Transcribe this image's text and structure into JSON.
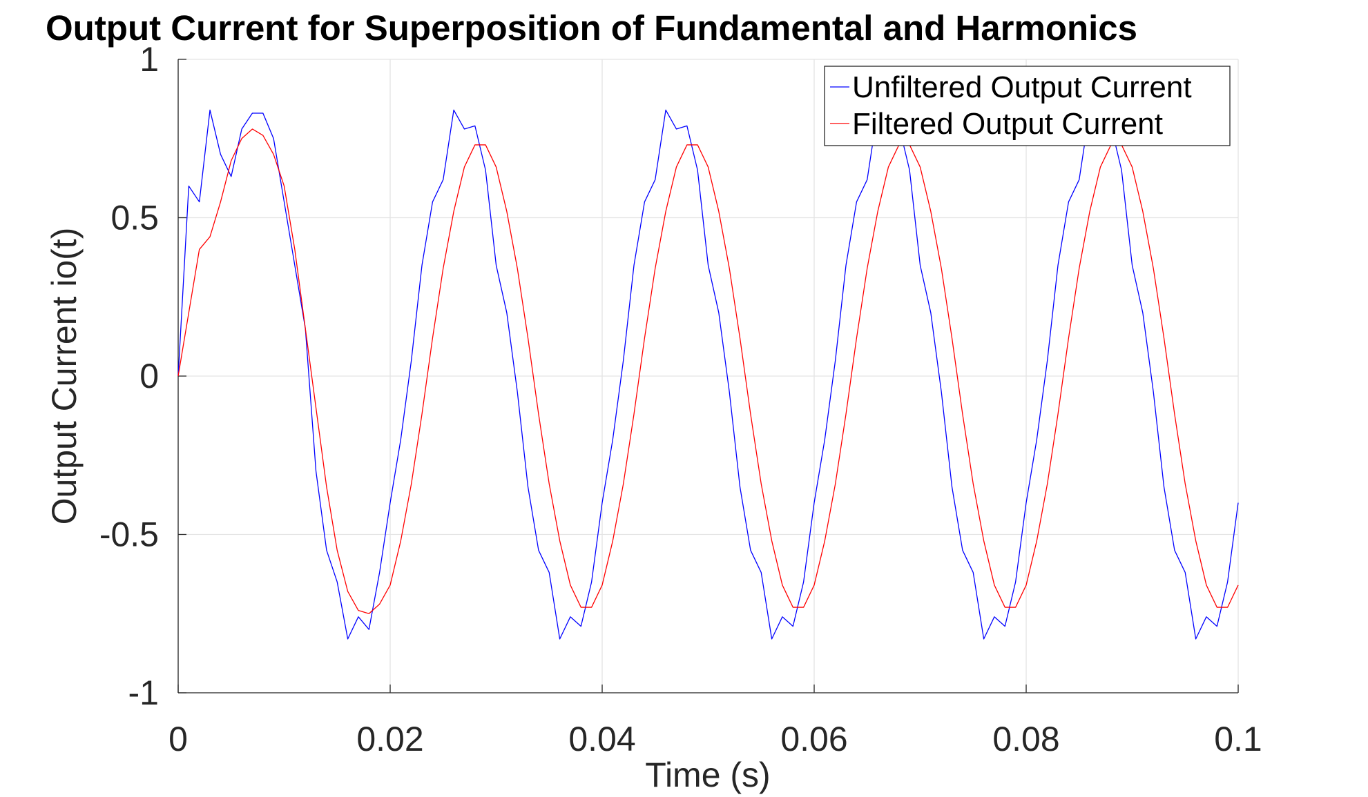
{
  "chart_data": {
    "type": "line",
    "title": "Output Current for Superposition of Fundamental and Harmonics",
    "xlabel": "Time (s)",
    "ylabel": "Output Current io(t)",
    "xlim": [
      0,
      0.1
    ],
    "xticks": [
      0,
      0.02,
      0.04,
      0.06,
      0.08,
      0.1
    ],
    "ylim": [
      -1,
      1
    ],
    "yticks": [
      -1,
      -0.5,
      0,
      0.5,
      1
    ],
    "grid": true,
    "legend": "upper right",
    "x": [
      0,
      0.001,
      0.002,
      0.003,
      0.004,
      0.005,
      0.006,
      0.007,
      0.008,
      0.009,
      0.01,
      0.011,
      0.012,
      0.013,
      0.014,
      0.015,
      0.016,
      0.017,
      0.018,
      0.019,
      0.02,
      0.021,
      0.022,
      0.023,
      0.024,
      0.025,
      0.026,
      0.027,
      0.028,
      0.029,
      0.03,
      0.031,
      0.032,
      0.033,
      0.034,
      0.035,
      0.036,
      0.037,
      0.038,
      0.039,
      0.04,
      0.041,
      0.042,
      0.043,
      0.044,
      0.045,
      0.046,
      0.047,
      0.048,
      0.049,
      0.05,
      0.051,
      0.052,
      0.053,
      0.054,
      0.055,
      0.056,
      0.057,
      0.058,
      0.059,
      0.06,
      0.061,
      0.062,
      0.063,
      0.064,
      0.065,
      0.066,
      0.067,
      0.068,
      0.069,
      0.07,
      0.071,
      0.072,
      0.073,
      0.074,
      0.075,
      0.076,
      0.077,
      0.078,
      0.079,
      0.08,
      0.081,
      0.082,
      0.083,
      0.084,
      0.085,
      0.086,
      0.087,
      0.088,
      0.089,
      0.09,
      0.091,
      0.092,
      0.093,
      0.094,
      0.095,
      0.096,
      0.097,
      0.098,
      0.099,
      0.1
    ],
    "series": [
      {
        "name": "Unfiltered Output Current",
        "color": "#0000ff",
        "values": [
          0,
          0.6,
          0.55,
          0.84,
          0.7,
          0.63,
          0.78,
          0.83,
          0.83,
          0.75,
          0.55,
          0.35,
          0.15,
          -0.3,
          -0.55,
          -0.65,
          -0.83,
          -0.76,
          -0.8,
          -0.62,
          -0.4,
          -0.2,
          0.05,
          0.35,
          0.55,
          0.62,
          0.84,
          0.78,
          0.79,
          0.65,
          0.35,
          0.2,
          -0.05,
          -0.35,
          -0.55,
          -0.62,
          -0.83,
          -0.76,
          -0.79,
          -0.65,
          -0.4,
          -0.2,
          0.05,
          0.35,
          0.55,
          0.62,
          0.84,
          0.78,
          0.79,
          0.65,
          0.35,
          0.2,
          -0.05,
          -0.35,
          -0.55,
          -0.62,
          -0.83,
          -0.76,
          -0.79,
          -0.65,
          -0.4,
          -0.2,
          0.05,
          0.35,
          0.55,
          0.62,
          0.84,
          0.78,
          0.79,
          0.65,
          0.35,
          0.2,
          -0.05,
          -0.35,
          -0.55,
          -0.62,
          -0.83,
          -0.76,
          -0.79,
          -0.65,
          -0.4,
          -0.2,
          0.05,
          0.35,
          0.55,
          0.62,
          0.84,
          0.78,
          0.79,
          0.65,
          0.35,
          0.2,
          -0.05,
          -0.35,
          -0.55,
          -0.62,
          -0.83,
          -0.76,
          -0.79,
          -0.65,
          -0.4
        ]
      },
      {
        "name": "Filtered Output Current",
        "color": "#ff0000",
        "values": [
          0,
          0.2,
          0.4,
          0.44,
          0.55,
          0.68,
          0.75,
          0.78,
          0.76,
          0.7,
          0.6,
          0.4,
          0.15,
          -0.1,
          -0.35,
          -0.55,
          -0.68,
          -0.74,
          -0.75,
          -0.72,
          -0.66,
          -0.52,
          -0.34,
          -0.12,
          0.12,
          0.34,
          0.52,
          0.66,
          0.73,
          0.73,
          0.66,
          0.52,
          0.34,
          0.12,
          -0.12,
          -0.34,
          -0.52,
          -0.66,
          -0.73,
          -0.73,
          -0.66,
          -0.52,
          -0.34,
          -0.12,
          0.12,
          0.34,
          0.52,
          0.66,
          0.73,
          0.73,
          0.66,
          0.52,
          0.34,
          0.12,
          -0.12,
          -0.34,
          -0.52,
          -0.66,
          -0.73,
          -0.73,
          -0.66,
          -0.52,
          -0.34,
          -0.12,
          0.12,
          0.34,
          0.52,
          0.66,
          0.73,
          0.73,
          0.66,
          0.52,
          0.34,
          0.12,
          -0.12,
          -0.34,
          -0.52,
          -0.66,
          -0.73,
          -0.73,
          -0.66,
          -0.52,
          -0.34,
          -0.12,
          0.12,
          0.34,
          0.52,
          0.66,
          0.73,
          0.73,
          0.66,
          0.52,
          0.34,
          0.12,
          -0.12,
          -0.34,
          -0.52,
          -0.66,
          -0.73,
          -0.73,
          -0.66
        ]
      }
    ]
  }
}
